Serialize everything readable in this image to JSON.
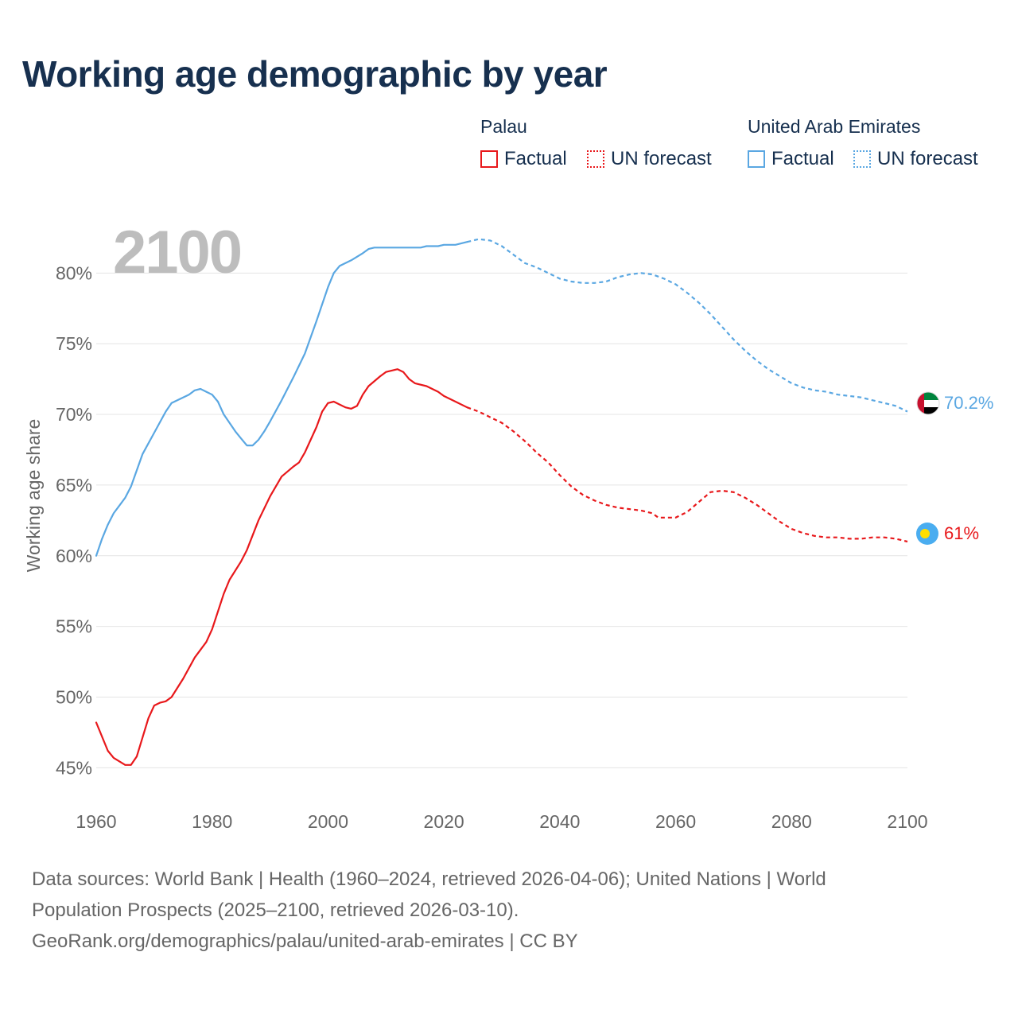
{
  "chart_data": {
    "type": "line",
    "title": "Working age demographic by year",
    "year_label": "2100",
    "xlabel": "",
    "ylabel": "Working age share",
    "xlim": [
      1960,
      2100
    ],
    "ylim": [
      43.5,
      83
    ],
    "x_ticks": [
      1960,
      1980,
      2000,
      2020,
      2040,
      2060,
      2080,
      2100
    ],
    "y_ticks": [
      45,
      50,
      55,
      60,
      65,
      70,
      75,
      80
    ],
    "y_tick_labels": [
      "45%",
      "50%",
      "55%",
      "60%",
      "65%",
      "70%",
      "75%",
      "80%"
    ],
    "grid": true,
    "forecast_start": 2024,
    "legend": {
      "groups": [
        {
          "name": "Palau",
          "color": "#e8181b",
          "factual_label": "Factual",
          "forecast_label": "UN forecast"
        },
        {
          "name": "United Arab Emirates",
          "color": "#5aa7e2",
          "factual_label": "Factual",
          "forecast_label": "UN forecast"
        }
      ]
    },
    "series": [
      {
        "name": "Palau",
        "color": "#e8181b",
        "end_label": "61%",
        "flag": "palau-flag",
        "points": [
          [
            1960,
            48.2
          ],
          [
            1962,
            46.2
          ],
          [
            1963,
            45.7
          ],
          [
            1965,
            45.2
          ],
          [
            1966,
            45.2
          ],
          [
            1967,
            45.8
          ],
          [
            1969,
            48.5
          ],
          [
            1970,
            49.4
          ],
          [
            1971,
            49.6
          ],
          [
            1972,
            49.7
          ],
          [
            1973,
            50.0
          ],
          [
            1975,
            51.3
          ],
          [
            1977,
            52.8
          ],
          [
            1979,
            53.9
          ],
          [
            1980,
            54.8
          ],
          [
            1982,
            57.3
          ],
          [
            1983,
            58.3
          ],
          [
            1985,
            59.6
          ],
          [
            1986,
            60.4
          ],
          [
            1988,
            62.5
          ],
          [
            1990,
            64.2
          ],
          [
            1992,
            65.6
          ],
          [
            1994,
            66.3
          ],
          [
            1995,
            66.6
          ],
          [
            1996,
            67.3
          ],
          [
            1998,
            69.1
          ],
          [
            1999,
            70.2
          ],
          [
            2000,
            70.8
          ],
          [
            2001,
            70.9
          ],
          [
            2002,
            70.7
          ],
          [
            2003,
            70.5
          ],
          [
            2004,
            70.4
          ],
          [
            2005,
            70.6
          ],
          [
            2006,
            71.4
          ],
          [
            2007,
            72.0
          ],
          [
            2009,
            72.7
          ],
          [
            2010,
            73.0
          ],
          [
            2012,
            73.2
          ],
          [
            2013,
            73.0
          ],
          [
            2014,
            72.5
          ],
          [
            2015,
            72.2
          ],
          [
            2017,
            72.0
          ],
          [
            2019,
            71.6
          ],
          [
            2020,
            71.3
          ],
          [
            2022,
            70.9
          ],
          [
            2024,
            70.5
          ],
          [
            2026,
            70.2
          ],
          [
            2028,
            69.8
          ],
          [
            2030,
            69.4
          ],
          [
            2032,
            68.8
          ],
          [
            2034,
            68.1
          ],
          [
            2036,
            67.3
          ],
          [
            2038,
            66.6
          ],
          [
            2040,
            65.7
          ],
          [
            2042,
            64.9
          ],
          [
            2044,
            64.3
          ],
          [
            2046,
            63.9
          ],
          [
            2048,
            63.6
          ],
          [
            2050,
            63.4
          ],
          [
            2052,
            63.3
          ],
          [
            2054,
            63.2
          ],
          [
            2056,
            63.0
          ],
          [
            2057,
            62.7
          ],
          [
            2060,
            62.7
          ],
          [
            2062,
            63.1
          ],
          [
            2064,
            63.8
          ],
          [
            2066,
            64.5
          ],
          [
            2068,
            64.6
          ],
          [
            2070,
            64.5
          ],
          [
            2072,
            64.1
          ],
          [
            2074,
            63.6
          ],
          [
            2076,
            63.0
          ],
          [
            2078,
            62.4
          ],
          [
            2080,
            61.9
          ],
          [
            2082,
            61.6
          ],
          [
            2084,
            61.4
          ],
          [
            2086,
            61.3
          ],
          [
            2088,
            61.3
          ],
          [
            2090,
            61.2
          ],
          [
            2092,
            61.2
          ],
          [
            2094,
            61.3
          ],
          [
            2096,
            61.3
          ],
          [
            2098,
            61.2
          ],
          [
            2100,
            61.0
          ]
        ]
      },
      {
        "name": "United Arab Emirates",
        "color": "#5aa7e2",
        "end_label": "70.2%",
        "flag": "uae-flag",
        "points": [
          [
            1960,
            60.0
          ],
          [
            1961,
            61.2
          ],
          [
            1962,
            62.2
          ],
          [
            1963,
            63.0
          ],
          [
            1965,
            64.1
          ],
          [
            1966,
            64.9
          ],
          [
            1968,
            67.2
          ],
          [
            1970,
            68.7
          ],
          [
            1972,
            70.2
          ],
          [
            1973,
            70.8
          ],
          [
            1975,
            71.2
          ],
          [
            1976,
            71.4
          ],
          [
            1977,
            71.7
          ],
          [
            1978,
            71.8
          ],
          [
            1979,
            71.6
          ],
          [
            1980,
            71.4
          ],
          [
            1981,
            70.9
          ],
          [
            1982,
            70.0
          ],
          [
            1984,
            68.8
          ],
          [
            1985,
            68.3
          ],
          [
            1986,
            67.8
          ],
          [
            1987,
            67.8
          ],
          [
            1988,
            68.2
          ],
          [
            1989,
            68.8
          ],
          [
            1990,
            69.5
          ],
          [
            1992,
            71.0
          ],
          [
            1994,
            72.6
          ],
          [
            1996,
            74.3
          ],
          [
            1998,
            76.6
          ],
          [
            2000,
            79.0
          ],
          [
            2001,
            80.0
          ],
          [
            2002,
            80.5
          ],
          [
            2004,
            80.9
          ],
          [
            2006,
            81.4
          ],
          [
            2007,
            81.7
          ],
          [
            2008,
            81.8
          ],
          [
            2010,
            81.8
          ],
          [
            2012,
            81.8
          ],
          [
            2014,
            81.8
          ],
          [
            2016,
            81.8
          ],
          [
            2017,
            81.9
          ],
          [
            2019,
            81.9
          ],
          [
            2020,
            82.0
          ],
          [
            2022,
            82.0
          ],
          [
            2024,
            82.2
          ],
          [
            2026,
            82.4
          ],
          [
            2028,
            82.3
          ],
          [
            2030,
            81.9
          ],
          [
            2032,
            81.3
          ],
          [
            2034,
            80.7
          ],
          [
            2036,
            80.4
          ],
          [
            2038,
            80.0
          ],
          [
            2040,
            79.6
          ],
          [
            2042,
            79.4
          ],
          [
            2044,
            79.3
          ],
          [
            2046,
            79.3
          ],
          [
            2048,
            79.4
          ],
          [
            2050,
            79.7
          ],
          [
            2052,
            79.9
          ],
          [
            2054,
            80.0
          ],
          [
            2056,
            79.9
          ],
          [
            2058,
            79.6
          ],
          [
            2060,
            79.2
          ],
          [
            2062,
            78.6
          ],
          [
            2064,
            77.9
          ],
          [
            2066,
            77.1
          ],
          [
            2068,
            76.2
          ],
          [
            2070,
            75.3
          ],
          [
            2072,
            74.5
          ],
          [
            2074,
            73.8
          ],
          [
            2076,
            73.2
          ],
          [
            2078,
            72.7
          ],
          [
            2080,
            72.2
          ],
          [
            2082,
            71.9
          ],
          [
            2084,
            71.7
          ],
          [
            2086,
            71.6
          ],
          [
            2088,
            71.4
          ],
          [
            2090,
            71.3
          ],
          [
            2092,
            71.2
          ],
          [
            2094,
            71.0
          ],
          [
            2096,
            70.8
          ],
          [
            2098,
            70.6
          ],
          [
            2100,
            70.2
          ]
        ]
      }
    ]
  },
  "footer": {
    "line1": "Data sources: World Bank | Health (1960–2024, retrieved 2026-04-06); United Nations | World",
    "line2": "Population Prospects (2025–2100, retrieved 2026-03-10).",
    "line3": "GeoRank.org/demographics/palau/united-arab-emirates | CC BY"
  }
}
